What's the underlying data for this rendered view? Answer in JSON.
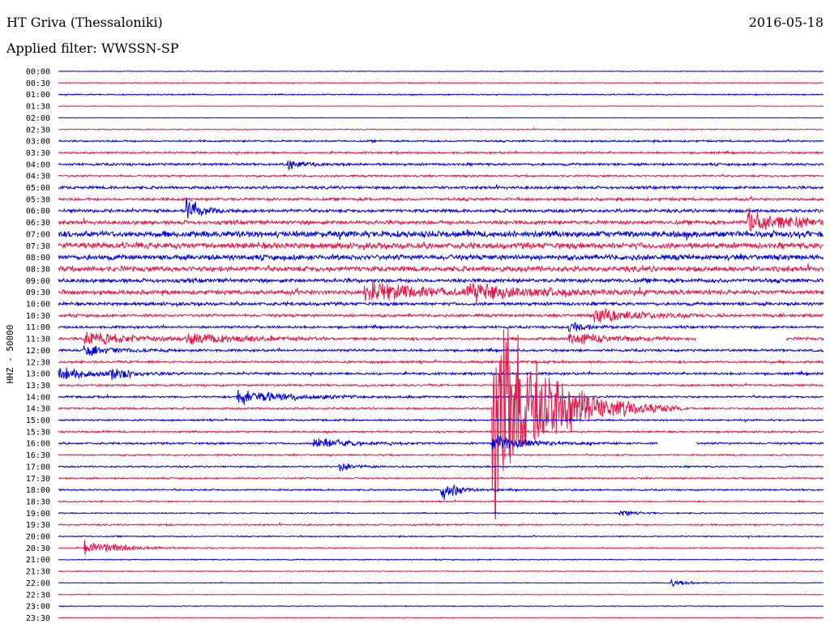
{
  "header": {
    "station": "HT Griva (Thessaloniki)",
    "date": "2016-05-18",
    "filter": "Applied filter: WWSSN-SP"
  },
  "chart_data": {
    "type": "line",
    "title": "HT Griva (Thessaloniki)",
    "subtitle": "Applied filter: WWSSN-SP",
    "ylabel": "HHZ - 50000",
    "xlabel": "",
    "grid": false,
    "colors": {
      "even_rows": "#0000e6",
      "odd_rows": "#e6194b"
    },
    "time_labels": [
      "00:00",
      "00:30",
      "01:00",
      "01:30",
      "02:00",
      "02:30",
      "03:00",
      "03:30",
      "04:00",
      "04:30",
      "05:00",
      "05:30",
      "06:00",
      "06:30",
      "07:00",
      "07:30",
      "08:00",
      "08:30",
      "09:00",
      "09:30",
      "10:00",
      "10:30",
      "11:00",
      "11:30",
      "12:00",
      "12:30",
      "13:00",
      "13:30",
      "14:00",
      "14:30",
      "15:00",
      "15:30",
      "16:00",
      "16:30",
      "17:00",
      "17:30",
      "18:00",
      "18:30",
      "19:00",
      "19:30",
      "20:00",
      "20:30",
      "21:00",
      "21:30",
      "22:00",
      "22:30",
      "23:00",
      "23:30"
    ],
    "noise_levels": [
      0.3,
      0.5,
      0.6,
      0.3,
      0.3,
      0.5,
      0.9,
      1.0,
      1.2,
      1.0,
      1.4,
      1.4,
      1.6,
      2.0,
      3.2,
      3.0,
      2.6,
      2.6,
      2.0,
      2.2,
      1.6,
      1.4,
      1.2,
      1.4,
      1.2,
      1.2,
      1.2,
      1.0,
      1.0,
      1.0,
      0.9,
      0.9,
      1.0,
      0.8,
      0.8,
      0.8,
      0.8,
      0.7,
      0.6,
      0.8,
      0.6,
      0.6,
      0.5,
      0.5,
      0.4,
      0.4,
      0.4,
      0.4
    ],
    "events": [
      {
        "row": 12,
        "minute": 5,
        "amplitude": 20,
        "duration": 1
      },
      {
        "row": 8,
        "minute": 9,
        "amplitude": 8,
        "duration": 1
      },
      {
        "row": 13,
        "minute": 27,
        "amplitude": 18,
        "duration": 3
      },
      {
        "row": 19,
        "minute": 12,
        "amplitude": 14,
        "duration": 4
      },
      {
        "row": 19,
        "minute": 16,
        "amplitude": 12,
        "duration": 4
      },
      {
        "row": 21,
        "minute": 21,
        "amplitude": 10,
        "duration": 3
      },
      {
        "row": 22,
        "minute": 20,
        "amplitude": 8,
        "duration": 1
      },
      {
        "row": 23,
        "minute": 1,
        "amplitude": 10,
        "duration": 3
      },
      {
        "row": 23,
        "minute": 5,
        "amplitude": 9,
        "duration": 3
      },
      {
        "row": 23,
        "minute": 20,
        "amplitude": 8,
        "duration": 3
      },
      {
        "row": 24,
        "minute": 1,
        "amplitude": 8,
        "duration": 2
      },
      {
        "row": 26,
        "minute": 0,
        "amplitude": 10,
        "duration": 2
      },
      {
        "row": 26,
        "minute": 2,
        "amplitude": 9,
        "duration": 1
      },
      {
        "row": 28,
        "minute": 7,
        "amplitude": 12,
        "duration": 3
      },
      {
        "row": 29,
        "minute": 17,
        "amplitude": 170,
        "duration": 3
      },
      {
        "row": 32,
        "minute": 10,
        "amplitude": 9,
        "duration": 2
      },
      {
        "row": 32,
        "minute": 17,
        "amplitude": 12,
        "duration": 2
      },
      {
        "row": 34,
        "minute": 11,
        "amplitude": 6,
        "duration": 1
      },
      {
        "row": 36,
        "minute": 15,
        "amplitude": 18,
        "duration": 1
      },
      {
        "row": 38,
        "minute": 22,
        "amplitude": 5,
        "duration": 1
      },
      {
        "row": 41,
        "minute": 1,
        "amplitude": 14,
        "duration": 2
      },
      {
        "row": 44,
        "minute": 24,
        "amplitude": 6,
        "duration": 1
      }
    ],
    "gaps": [
      {
        "row": 23,
        "start_minute": 25,
        "end_minute": 28.5
      },
      {
        "row": 32,
        "start_minute": 23.5,
        "end_minute": 25
      }
    ]
  }
}
